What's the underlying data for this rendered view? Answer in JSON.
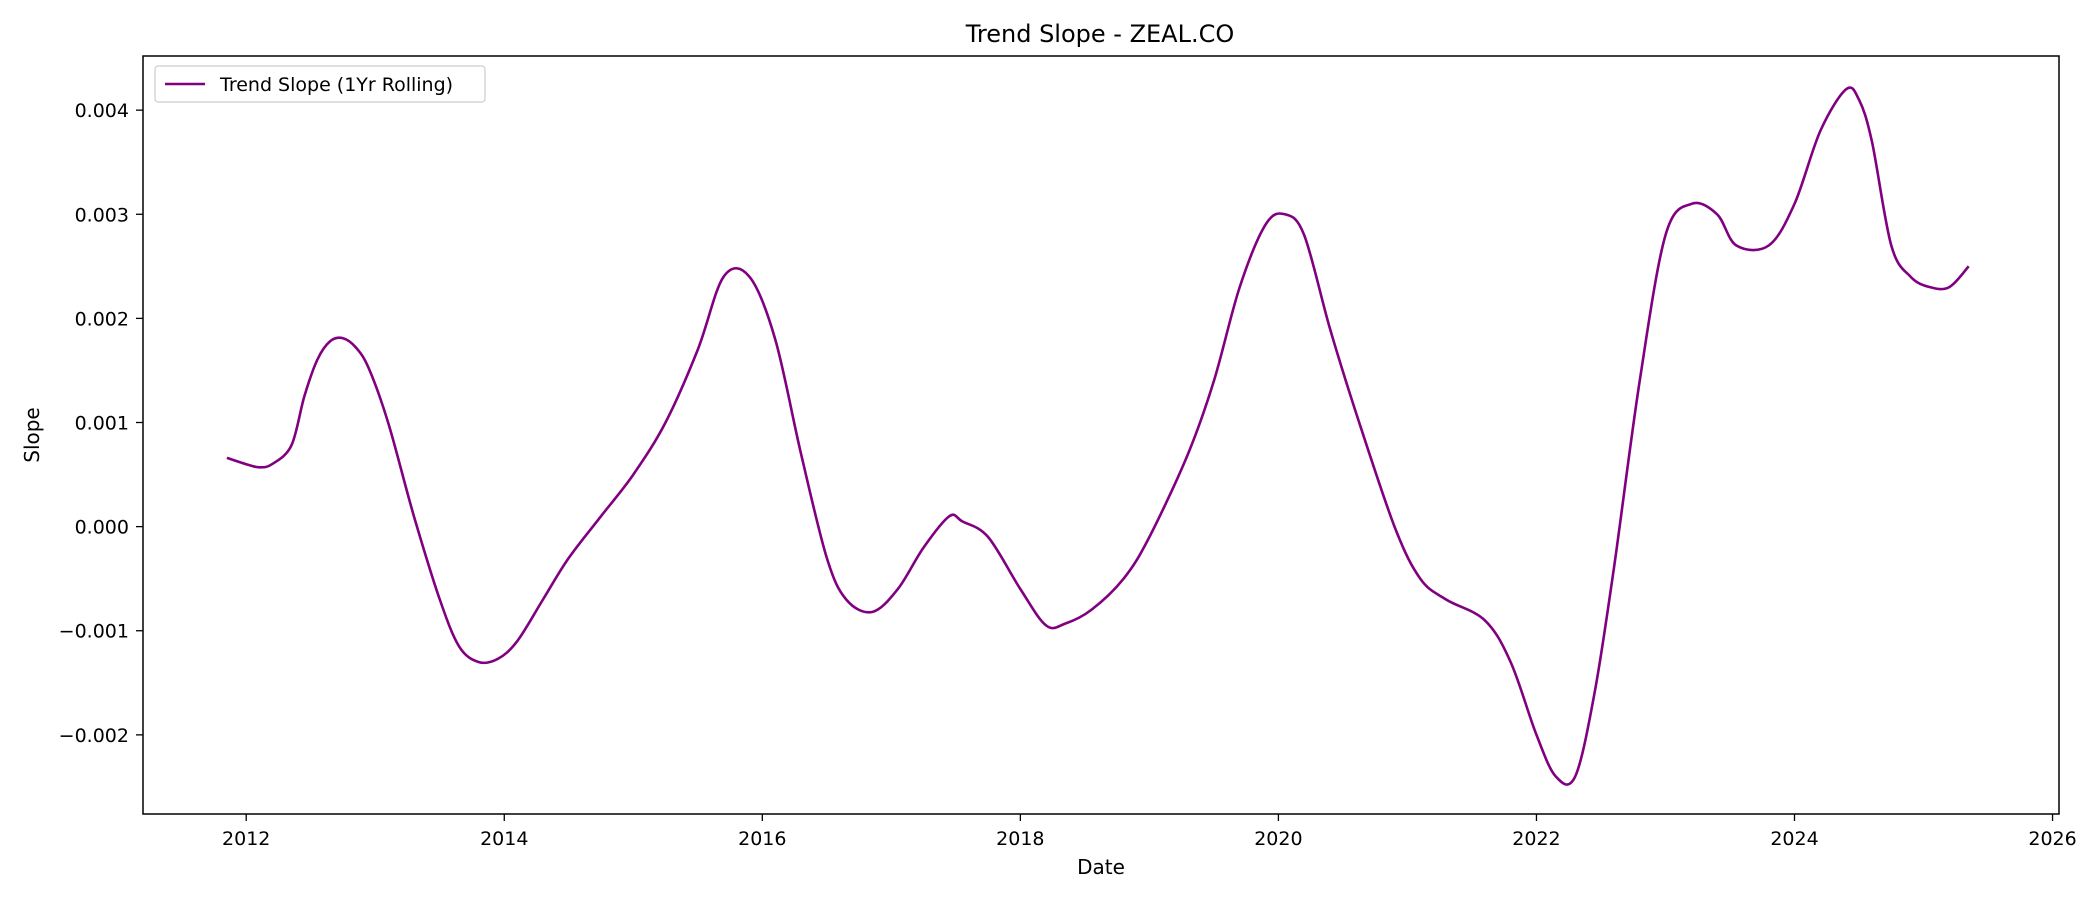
{
  "chart_data": {
    "type": "line",
    "title": "Trend Slope - ZEAL.CO",
    "xlabel": "Date",
    "ylabel": "Slope",
    "xlim": [
      2011.2,
      2026.05
    ],
    "ylim": [
      -0.00276,
      0.00452
    ],
    "x_ticks": [
      2012,
      2014,
      2016,
      2018,
      2020,
      2022,
      2024,
      2026
    ],
    "x_tick_labels": [
      "2012",
      "2014",
      "2016",
      "2018",
      "2020",
      "2022",
      "2024",
      "2026"
    ],
    "y_ticks": [
      -0.002,
      -0.001,
      0.0,
      0.001,
      0.002,
      0.003,
      0.004
    ],
    "y_tick_labels": [
      "−0.002",
      "−0.001",
      "0.000",
      "0.001",
      "0.002",
      "0.003",
      "0.004"
    ],
    "grid": false,
    "legend_position": "top-left",
    "series": [
      {
        "name": "Trend Slope (1Yr Rolling)",
        "color": "#800080",
        "x": [
          2011.85,
          2012.0,
          2012.1,
          2012.2,
          2012.35,
          2012.45,
          2012.55,
          2012.65,
          2012.75,
          2012.85,
          2012.95,
          2013.1,
          2013.3,
          2013.5,
          2013.65,
          2013.8,
          2013.95,
          2014.1,
          2014.3,
          2014.5,
          2014.75,
          2015.0,
          2015.25,
          2015.5,
          2015.7,
          2015.9,
          2016.1,
          2016.3,
          2016.5,
          2016.65,
          2016.85,
          2017.05,
          2017.25,
          2017.45,
          2017.55,
          2017.75,
          2018.0,
          2018.2,
          2018.35,
          2018.55,
          2018.8,
          2019.0,
          2019.3,
          2019.5,
          2019.7,
          2019.9,
          2020.05,
          2020.2,
          2020.4,
          2020.6,
          2020.9,
          2021.1,
          2021.3,
          2021.6,
          2021.8,
          2022.0,
          2022.15,
          2022.3,
          2022.45,
          2022.6,
          2022.8,
          2023.0,
          2023.2,
          2023.4,
          2023.55,
          2023.8,
          2024.0,
          2024.2,
          2024.4,
          2024.5,
          2024.6,
          2024.75,
          2024.9,
          2025.05,
          2025.2,
          2025.35
        ],
        "values": [
          0.00066,
          0.0006,
          0.00057,
          0.0006,
          0.00078,
          0.00125,
          0.0016,
          0.00178,
          0.00181,
          0.00172,
          0.00152,
          0.001,
          0.0001,
          -0.0007,
          -0.00115,
          -0.0013,
          -0.00127,
          -0.0011,
          -0.0007,
          -0.0003,
          0.0001,
          0.0005,
          0.001,
          0.0017,
          0.0024,
          0.0024,
          0.0018,
          0.0007,
          -0.0003,
          -0.0007,
          -0.00082,
          -0.0006,
          -0.0002,
          0.0001,
          5e-05,
          -0.0001,
          -0.0006,
          -0.00095,
          -0.00093,
          -0.0008,
          -0.0005,
          -0.0001,
          0.0007,
          0.0014,
          0.0023,
          0.0029,
          0.003,
          0.0028,
          0.0019,
          0.0011,
          0.0,
          -0.0005,
          -0.0007,
          -0.0009,
          -0.0013,
          -0.002,
          -0.0024,
          -0.0024,
          -0.0016,
          -0.0004,
          0.0014,
          0.0028,
          0.0031,
          0.003,
          0.0027,
          0.0027,
          0.0031,
          0.0038,
          0.0042,
          0.0041,
          0.0037,
          0.0027,
          0.0024,
          0.0023,
          0.0023,
          0.0025
        ]
      }
    ]
  }
}
